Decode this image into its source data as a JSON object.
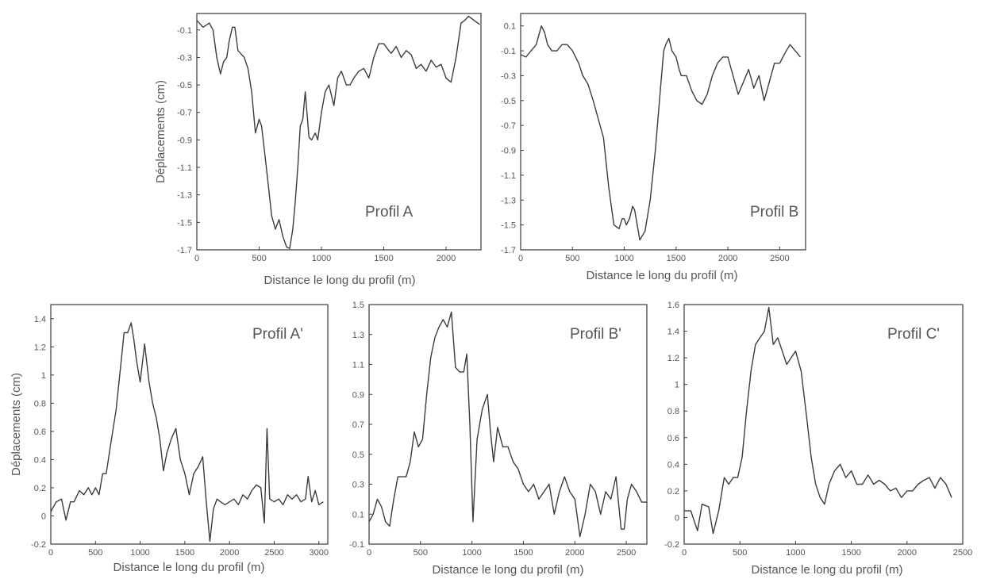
{
  "chart_data": [
    {
      "type": "line",
      "title": "Profil A",
      "xlabel": "Distance le long du profil (m)",
      "ylabel": "Déplacements (cm)",
      "xlim": [
        0,
        2280
      ],
      "ylim": [
        -1.7,
        0.02
      ],
      "xticks": [
        0,
        500,
        1000,
        1500,
        2000
      ],
      "yticks": [
        -0.1,
        -0.3,
        -0.5,
        -0.7,
        -0.9,
        -1.1,
        -1.3,
        -1.5,
        -1.7
      ],
      "x": [
        0,
        50,
        100,
        130,
        160,
        190,
        215,
        240,
        260,
        285,
        305,
        330,
        350,
        380,
        410,
        440,
        470,
        500,
        520,
        545,
        570,
        600,
        630,
        660,
        690,
        720,
        745,
        770,
        790,
        810,
        830,
        850,
        870,
        900,
        920,
        950,
        970,
        1000,
        1030,
        1060,
        1100,
        1130,
        1160,
        1200,
        1230,
        1260,
        1300,
        1340,
        1380,
        1420,
        1460,
        1500,
        1540,
        1560,
        1600,
        1640,
        1680,
        1720,
        1760,
        1800,
        1840,
        1880,
        1920,
        1960,
        2000,
        2040,
        2080,
        2120,
        2150,
        2180,
        2210,
        2240,
        2270
      ],
      "values": [
        -0.03,
        -0.08,
        -0.05,
        -0.1,
        -0.3,
        -0.42,
        -0.33,
        -0.3,
        -0.18,
        -0.08,
        -0.08,
        -0.25,
        -0.27,
        -0.3,
        -0.38,
        -0.55,
        -0.85,
        -0.75,
        -0.8,
        -1.0,
        -1.2,
        -1.45,
        -1.55,
        -1.48,
        -1.6,
        -1.68,
        -1.69,
        -1.55,
        -1.35,
        -1.1,
        -0.8,
        -0.75,
        -0.55,
        -0.88,
        -0.9,
        -0.85,
        -0.9,
        -0.7,
        -0.55,
        -0.5,
        -0.65,
        -0.45,
        -0.4,
        -0.5,
        -0.5,
        -0.45,
        -0.4,
        -0.38,
        -0.45,
        -0.3,
        -0.2,
        -0.2,
        -0.25,
        -0.27,
        -0.22,
        -0.3,
        -0.25,
        -0.28,
        -0.38,
        -0.35,
        -0.4,
        -0.32,
        -0.37,
        -0.35,
        -0.45,
        -0.48,
        -0.3,
        -0.05,
        -0.03,
        -0.0,
        -0.02,
        -0.04,
        -0.06
      ]
    },
    {
      "type": "line",
      "title": "Profil B",
      "xlabel": "Distance le long du profil (m)",
      "ylabel": "",
      "xlim": [
        0,
        2750
      ],
      "ylim": [
        -1.7,
        0.2
      ],
      "xticks": [
        0,
        500,
        1000,
        1500,
        2000,
        2500
      ],
      "yticks": [
        0.1,
        -0.1,
        -0.3,
        -0.5,
        -0.7,
        -0.9,
        -1.1,
        -1.3,
        -1.5,
        -1.7
      ],
      "x": [
        0,
        50,
        100,
        150,
        200,
        230,
        260,
        300,
        350,
        400,
        450,
        500,
        530,
        560,
        600,
        650,
        700,
        750,
        800,
        850,
        900,
        950,
        980,
        1000,
        1020,
        1050,
        1080,
        1100,
        1150,
        1200,
        1250,
        1300,
        1350,
        1380,
        1400,
        1430,
        1460,
        1500,
        1530,
        1550,
        1600,
        1650,
        1700,
        1750,
        1800,
        1850,
        1900,
        1950,
        2000,
        2050,
        2100,
        2150,
        2200,
        2250,
        2300,
        2350,
        2400,
        2450,
        2500,
        2550,
        2600,
        2650,
        2700
      ],
      "values": [
        -0.13,
        -0.15,
        -0.1,
        -0.05,
        0.1,
        0.05,
        -0.05,
        -0.1,
        -0.1,
        -0.05,
        -0.05,
        -0.1,
        -0.15,
        -0.2,
        -0.3,
        -0.37,
        -0.5,
        -0.65,
        -0.8,
        -1.2,
        -1.5,
        -1.53,
        -1.45,
        -1.45,
        -1.5,
        -1.45,
        -1.35,
        -1.38,
        -1.62,
        -1.55,
        -1.3,
        -0.9,
        -0.4,
        -0.1,
        -0.05,
        0.0,
        -0.1,
        -0.15,
        -0.25,
        -0.3,
        -0.3,
        -0.42,
        -0.5,
        -0.53,
        -0.45,
        -0.3,
        -0.2,
        -0.15,
        -0.15,
        -0.3,
        -0.45,
        -0.35,
        -0.25,
        -0.4,
        -0.3,
        -0.5,
        -0.35,
        -0.2,
        -0.2,
        -0.12,
        -0.05,
        -0.1,
        -0.15
      ]
    },
    {
      "type": "line",
      "title": "Profil A'",
      "xlabel": "Distance le long du profil (m)",
      "ylabel": "Déplacements (cm)",
      "xlim": [
        0,
        3100
      ],
      "ylim": [
        -0.2,
        1.5
      ],
      "xticks": [
        0,
        500,
        1000,
        1500,
        2000,
        2500,
        3000
      ],
      "yticks": [
        1.4,
        1.2,
        1,
        0.8,
        0.6,
        0.4,
        0.2,
        0,
        -0.2
      ],
      "x": [
        0,
        60,
        120,
        170,
        220,
        260,
        320,
        370,
        420,
        460,
        500,
        540,
        580,
        620,
        680,
        730,
        780,
        820,
        860,
        900,
        930,
        960,
        1000,
        1050,
        1100,
        1140,
        1180,
        1220,
        1260,
        1300,
        1350,
        1400,
        1450,
        1500,
        1550,
        1600,
        1650,
        1700,
        1740,
        1780,
        1820,
        1860,
        1900,
        1950,
        2000,
        2050,
        2100,
        2150,
        2200,
        2250,
        2300,
        2350,
        2390,
        2420,
        2450,
        2500,
        2550,
        2600,
        2650,
        2700,
        2750,
        2800,
        2850,
        2880,
        2920,
        2960,
        3000,
        3050
      ],
      "values": [
        0.03,
        0.1,
        0.12,
        -0.03,
        0.1,
        0.1,
        0.18,
        0.15,
        0.2,
        0.15,
        0.2,
        0.15,
        0.3,
        0.3,
        0.55,
        0.75,
        1.05,
        1.3,
        1.3,
        1.37,
        1.25,
        1.1,
        0.95,
        1.22,
        0.95,
        0.8,
        0.7,
        0.55,
        0.32,
        0.45,
        0.55,
        0.62,
        0.4,
        0.3,
        0.15,
        0.3,
        0.35,
        0.42,
        0.1,
        -0.18,
        0.05,
        0.12,
        0.1,
        0.08,
        0.1,
        0.12,
        0.08,
        0.15,
        0.12,
        0.18,
        0.22,
        0.2,
        -0.05,
        0.62,
        0.12,
        0.1,
        0.12,
        0.08,
        0.15,
        0.12,
        0.15,
        0.1,
        0.12,
        0.28,
        0.1,
        0.18,
        0.08,
        0.1
      ]
    },
    {
      "type": "line",
      "title": "Profil B'",
      "xlabel": "Distance le long du profil (m)",
      "ylabel": "",
      "xlim": [
        0,
        2700
      ],
      "ylim": [
        -0.1,
        1.5
      ],
      "xticks": [
        0,
        500,
        1000,
        1500,
        2000,
        2500
      ],
      "yticks": [
        1.5,
        1.3,
        1.1,
        0.9,
        0.7,
        0.5,
        0.3,
        0.1,
        -0.1
      ],
      "x": [
        0,
        40,
        80,
        120,
        160,
        200,
        240,
        280,
        320,
        360,
        400,
        440,
        480,
        520,
        560,
        600,
        640,
        680,
        720,
        760,
        800,
        840,
        880,
        920,
        950,
        980,
        1010,
        1050,
        1100,
        1150,
        1180,
        1210,
        1250,
        1300,
        1350,
        1400,
        1450,
        1500,
        1550,
        1600,
        1650,
        1700,
        1750,
        1800,
        1850,
        1900,
        1950,
        2000,
        2050,
        2100,
        2150,
        2200,
        2250,
        2300,
        2350,
        2400,
        2450,
        2480,
        2510,
        2550,
        2600,
        2650,
        2700
      ],
      "values": [
        0.05,
        0.1,
        0.2,
        0.15,
        0.05,
        0.02,
        0.2,
        0.35,
        0.35,
        0.35,
        0.45,
        0.65,
        0.55,
        0.6,
        0.9,
        1.15,
        1.28,
        1.35,
        1.4,
        1.35,
        1.45,
        1.08,
        1.05,
        1.05,
        1.17,
        0.7,
        0.05,
        0.6,
        0.8,
        0.9,
        0.65,
        0.45,
        0.68,
        0.55,
        0.55,
        0.45,
        0.4,
        0.3,
        0.25,
        0.3,
        0.2,
        0.25,
        0.3,
        0.1,
        0.25,
        0.35,
        0.25,
        0.2,
        -0.05,
        0.1,
        0.3,
        0.25,
        0.1,
        0.25,
        0.2,
        0.35,
        0.0,
        0.0,
        0.2,
        0.3,
        0.25,
        0.18,
        0.18
      ]
    },
    {
      "type": "line",
      "title": "Profil C'",
      "xlabel": "Distance le long du profil (m)",
      "ylabel": "",
      "xlim": [
        0,
        2500
      ],
      "ylim": [
        -0.2,
        1.6
      ],
      "xticks": [
        0,
        500,
        1000,
        1500,
        2000,
        2500
      ],
      "yticks": [
        1.6,
        1.4,
        1.2,
        1,
        0.8,
        0.6,
        0.4,
        0.2,
        0,
        -0.2
      ],
      "x": [
        0,
        60,
        120,
        160,
        220,
        260,
        310,
        360,
        400,
        440,
        480,
        520,
        560,
        600,
        640,
        680,
        720,
        760,
        800,
        840,
        880,
        920,
        960,
        1000,
        1050,
        1100,
        1140,
        1180,
        1220,
        1260,
        1300,
        1350,
        1400,
        1450,
        1500,
        1550,
        1600,
        1650,
        1700,
        1750,
        1800,
        1850,
        1900,
        1950,
        2000,
        2050,
        2100,
        2150,
        2200,
        2250,
        2300,
        2350,
        2400
      ],
      "values": [
        0.05,
        0.05,
        -0.1,
        0.1,
        0.08,
        -0.12,
        0.05,
        0.3,
        0.25,
        0.3,
        0.3,
        0.45,
        0.8,
        1.1,
        1.3,
        1.35,
        1.4,
        1.58,
        1.3,
        1.35,
        1.25,
        1.15,
        1.2,
        1.25,
        1.1,
        0.75,
        0.45,
        0.25,
        0.15,
        0.1,
        0.25,
        0.35,
        0.4,
        0.3,
        0.35,
        0.25,
        0.25,
        0.32,
        0.25,
        0.28,
        0.25,
        0.2,
        0.22,
        0.15,
        0.2,
        0.2,
        0.25,
        0.28,
        0.3,
        0.22,
        0.3,
        0.25,
        0.15
      ]
    }
  ]
}
